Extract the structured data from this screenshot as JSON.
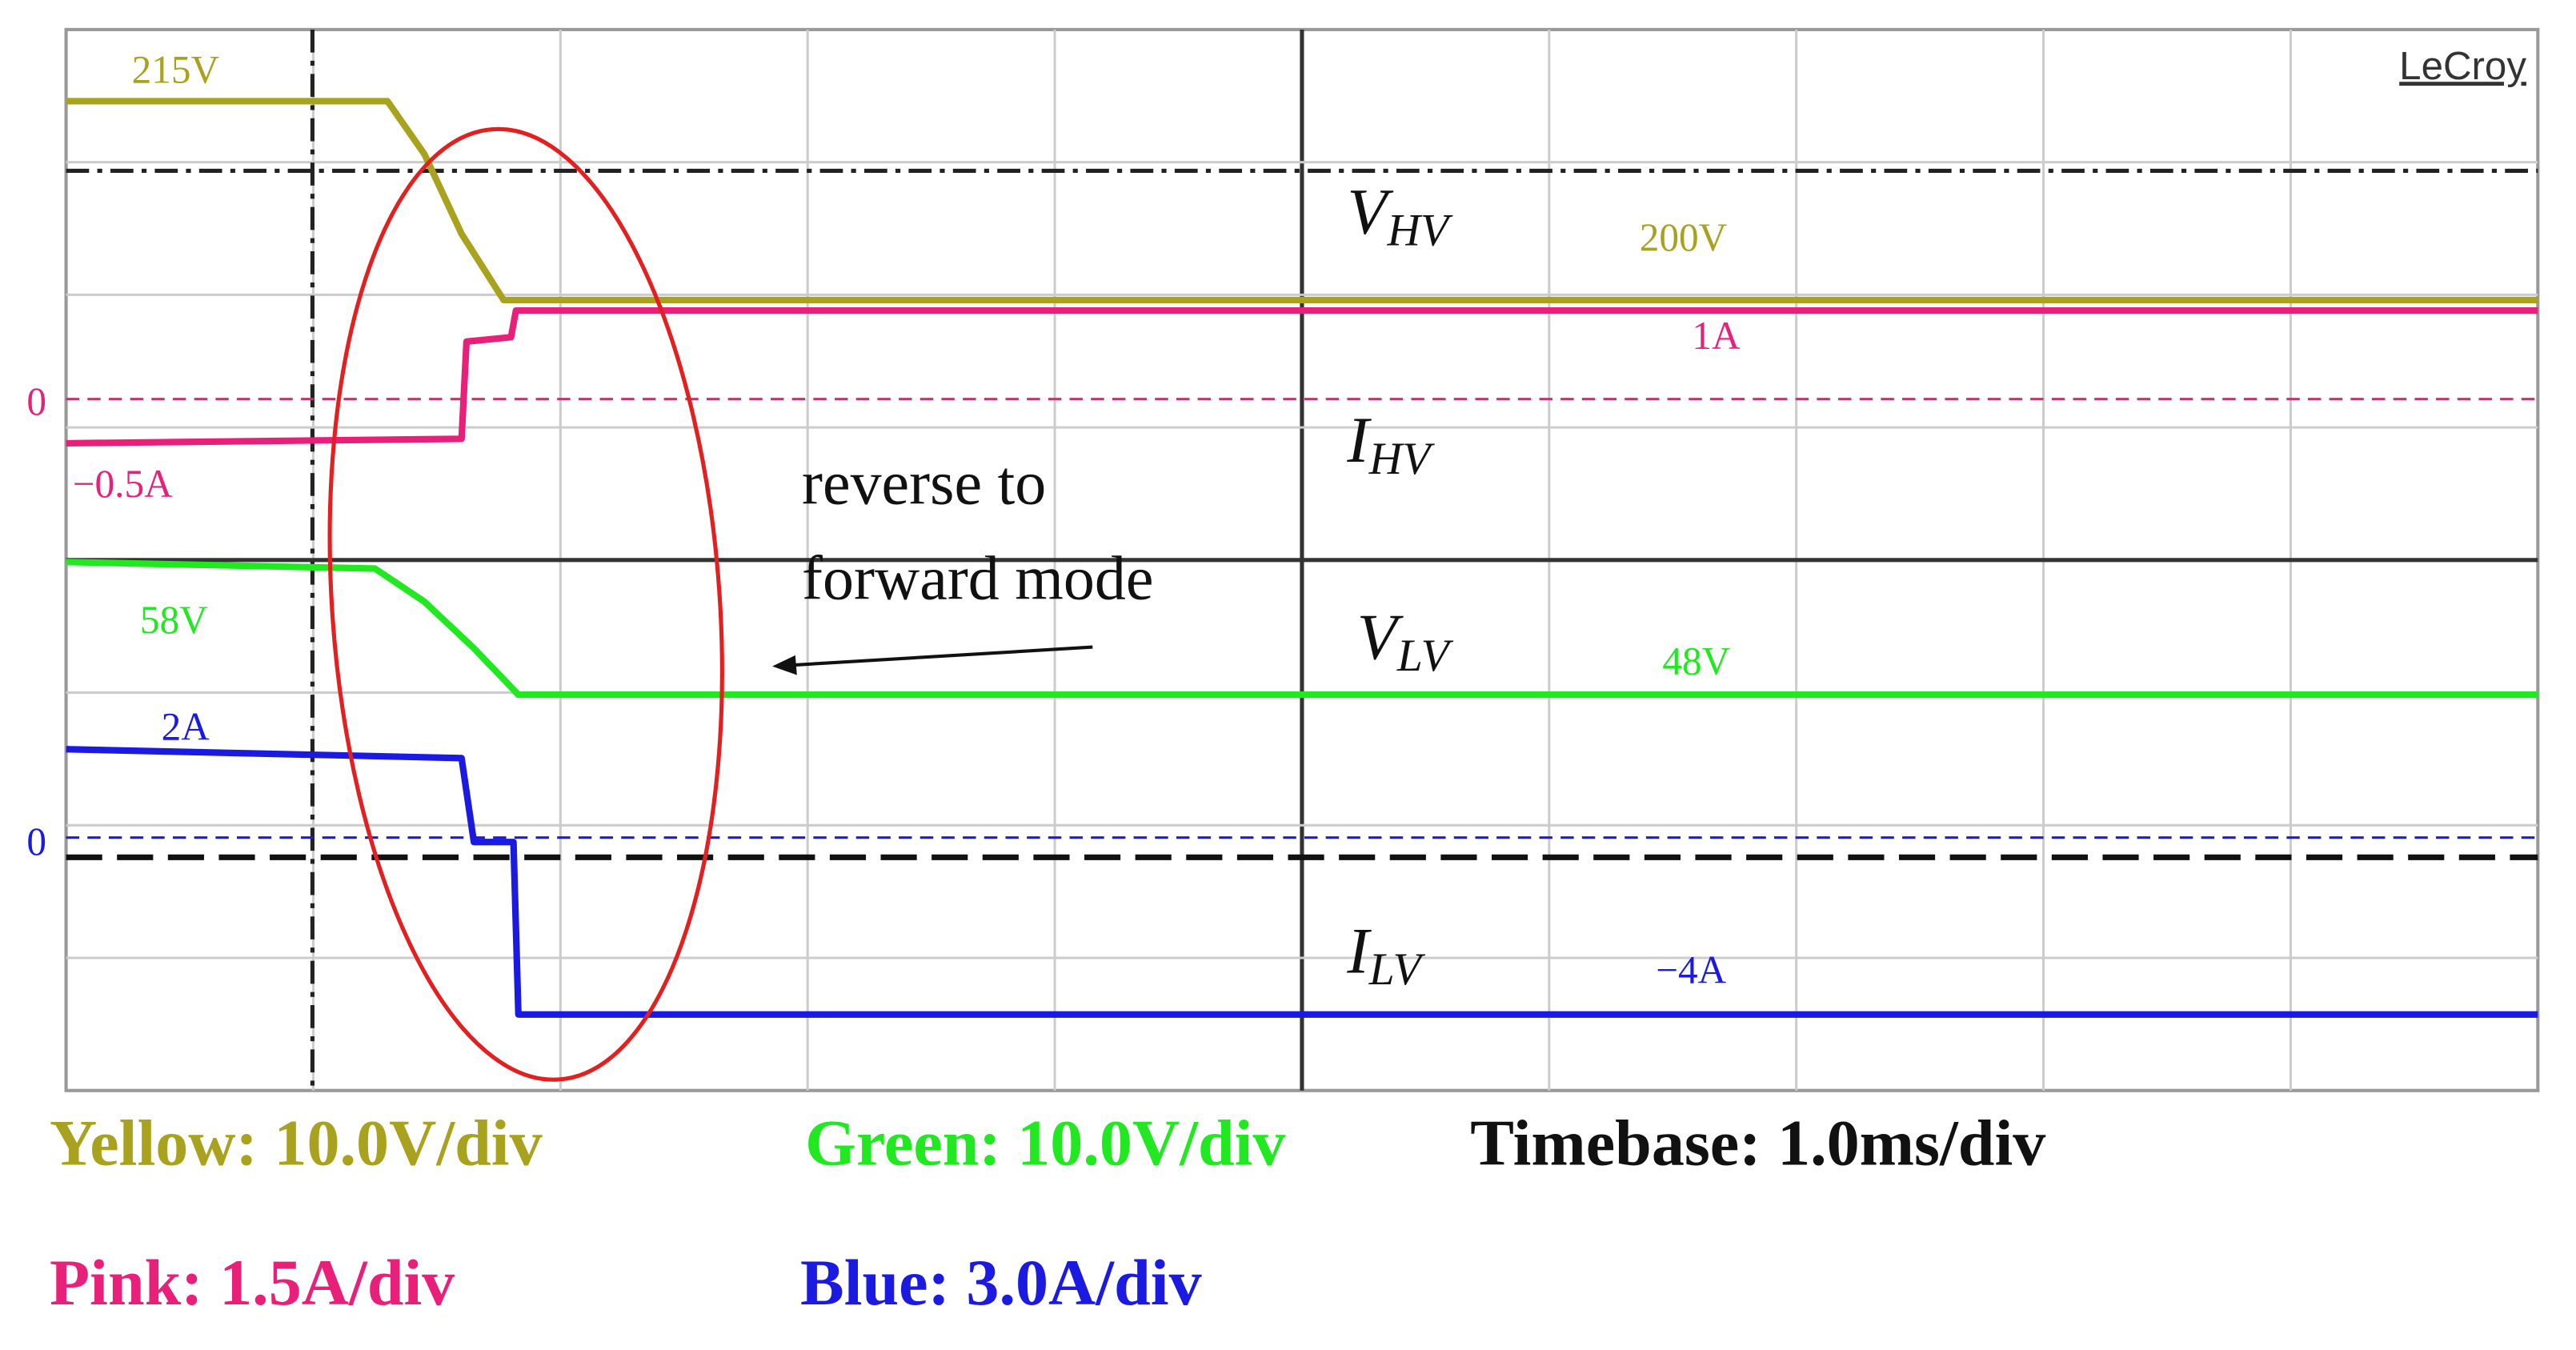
{
  "chart_data": {
    "type": "oscilloscope",
    "brand": "LeCroy",
    "xlim": [
      0,
      10
    ],
    "timebase": {
      "value": 1,
      "label": "Timebase: 1.0ms/div"
    },
    "annotation": [
      "reverse to",
      "forward mode"
    ],
    "series": [
      {
        "label": "V",
        "label_sub": "HV",
        "color": "#a9a21e",
        "scale": {
          "value": 10,
          "label": "Yellow: 10.0V/div"
        },
        "x": [
          0,
          1.3,
          1.45,
          1.6,
          1.77,
          10
        ],
        "values": [
          215,
          215,
          211,
          205,
          200,
          200
        ],
        "value_labels": [
          "215V",
          null,
          null,
          null,
          null,
          "200V"
        ]
      },
      {
        "label": "I",
        "label_sub": "HV",
        "color": "#e8207a",
        "scale": {
          "value": 1.5,
          "label": "Pink: 1.5A/div"
        },
        "reference": {
          "value": 0,
          "label": "0"
        },
        "x": [
          0,
          1.6,
          1.62,
          1.8,
          1.82,
          10
        ],
        "values": [
          -0.5,
          -0.45,
          0.65,
          0.7,
          1,
          1
        ],
        "value_labels": [
          "−0.5A",
          null,
          null,
          null,
          null,
          "1A"
        ]
      },
      {
        "label": "V",
        "label_sub": "LV",
        "color": "#22e822",
        "scale": {
          "value": 10,
          "label": "Green: 10.0V/div"
        },
        "x": [
          0,
          1.25,
          1.45,
          1.65,
          1.83,
          10
        ],
        "values": [
          58,
          57.5,
          55,
          51.5,
          48,
          48
        ],
        "value_labels": [
          "58V",
          null,
          null,
          null,
          null,
          "48V"
        ]
      },
      {
        "label": "I",
        "label_sub": "LV",
        "color": "#1a1ae0",
        "scale": {
          "value": 3,
          "label": "Blue: 3.0A/div"
        },
        "reference": {
          "value": 0,
          "label": "0"
        },
        "x": [
          0,
          1.6,
          1.65,
          1.81,
          1.83,
          10
        ],
        "values": [
          2,
          1.8,
          -0.1,
          -0.1,
          -4,
          -4
        ],
        "value_labels": [
          "2A",
          null,
          null,
          null,
          null,
          "−4A"
        ]
      }
    ]
  }
}
